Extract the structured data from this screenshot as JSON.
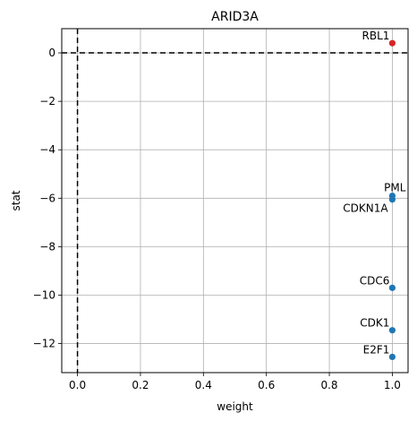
{
  "chart_data": {
    "type": "scatter",
    "title": "ARID3A",
    "xlabel": "weight",
    "ylabel": "stat",
    "xlim": [
      -0.05,
      1.05
    ],
    "ylim": [
      -13.2,
      1.0
    ],
    "xticks": [
      0.0,
      0.2,
      0.4,
      0.6,
      0.8,
      1.0
    ],
    "xtick_labels": [
      "0.0",
      "0.2",
      "0.4",
      "0.6",
      "0.8",
      "1.0"
    ],
    "yticks": [
      0,
      -2,
      -4,
      -6,
      -8,
      -10,
      -12
    ],
    "ytick_labels": [
      "0",
      "−2",
      "−4",
      "−6",
      "−8",
      "−10",
      "−12"
    ],
    "grid": true,
    "reference_lines": {
      "x": 0,
      "y": 0,
      "style": "dashed"
    },
    "colors": {
      "positive": "#d62728",
      "negative": "#1f77b4"
    },
    "points": [
      {
        "label": "RBL1",
        "x": 1.0,
        "y": 0.4,
        "color": "#d62728"
      },
      {
        "label": "PML",
        "x": 1.0,
        "y": -5.9,
        "color": "#1f77b4"
      },
      {
        "label": "CDKN1A",
        "x": 1.0,
        "y": -6.05,
        "color": "#1f77b4"
      },
      {
        "label": "CDC6",
        "x": 1.0,
        "y": -9.7,
        "color": "#1f77b4"
      },
      {
        "label": "CDK1",
        "x": 1.0,
        "y": -11.45,
        "color": "#1f77b4"
      },
      {
        "label": "E2F1",
        "x": 1.0,
        "y": -12.55,
        "color": "#1f77b4"
      }
    ]
  }
}
